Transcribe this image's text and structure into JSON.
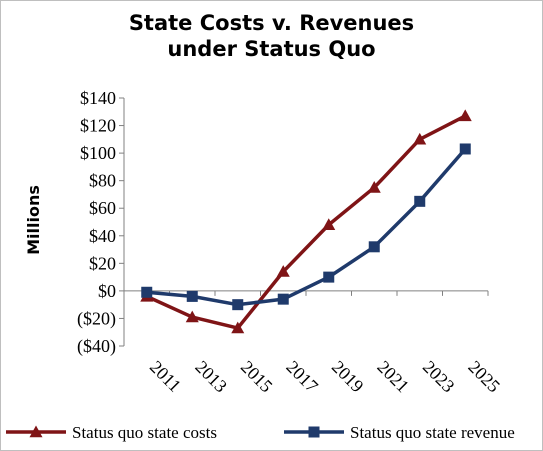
{
  "chart_data": {
    "type": "line",
    "title": [
      "State Costs v. Revenues",
      "under Status Quo"
    ],
    "ylabel": "Millions",
    "xlabel": "",
    "categories": [
      "2011",
      "2013",
      "2015",
      "2017",
      "2019",
      "2021",
      "2023",
      "2025"
    ],
    "y_ticks": [
      "$140",
      "$120",
      "$100",
      "$80",
      "$60",
      "$40",
      "$20",
      "$0",
      "($20)",
      "($40)"
    ],
    "ylim": [
      -40,
      140
    ],
    "grid": false,
    "legend_position": "bottom",
    "series": [
      {
        "name": "Status quo state costs",
        "color": "#7f1416",
        "marker": "triangle",
        "values": [
          -4,
          -19,
          -27,
          14,
          48,
          75,
          110,
          127
        ]
      },
      {
        "name": "Status quo state revenue",
        "color": "#1f3a6b",
        "marker": "square",
        "values": [
          -1,
          -4,
          -10,
          -6,
          10,
          32,
          65,
          103
        ]
      }
    ]
  }
}
